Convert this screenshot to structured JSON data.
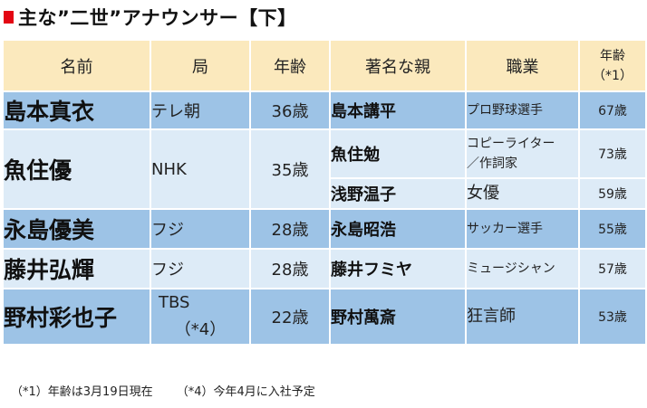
{
  "title": {
    "text": "主な”二世”アナウンサー【下】"
  },
  "headers": {
    "name": "名前",
    "station": "局",
    "age": "年齢",
    "parent": "著名な親",
    "job": "職業",
    "parent_age_top": "年齢",
    "parent_age_note": "（*1）"
  },
  "rows": [
    {
      "name": "島本真衣",
      "station": "テレ朝",
      "age": "36歳",
      "parents": [
        {
          "name": "島本講平",
          "job": "プロ野球選手",
          "age": "67歳"
        }
      ]
    },
    {
      "name": "魚住優",
      "station": "NHK",
      "age": "35歳",
      "parents": [
        {
          "name": "魚住勉",
          "job_line1": "コピーライター",
          "job_line2": "／作詞家",
          "age": "73歳"
        },
        {
          "name": "浅野温子",
          "job": "女優",
          "age": "59歳"
        }
      ]
    },
    {
      "name": "永島優美",
      "station": "フジ",
      "age": "28歳",
      "parents": [
        {
          "name": "永島昭浩",
          "job": "サッカー選手",
          "age": "55歳"
        }
      ]
    },
    {
      "name": "藤井弘輝",
      "station": "フジ",
      "age": "28歳",
      "parents": [
        {
          "name": "藤井フミヤ",
          "job": "ミュージシャン",
          "age": "57歳"
        }
      ]
    },
    {
      "name": "野村彩也子",
      "station_line1": "TBS",
      "station_line2": "（*4）",
      "age": "22歳",
      "parents": [
        {
          "name": "野村萬斎",
          "job": "狂言師",
          "age": "53歳"
        }
      ]
    }
  ],
  "footnotes": [
    "（*1）年齢は3月19日現在",
    "（*4）今年4月に入社予定"
  ],
  "colors": {
    "header_bg": "#fbe9bd",
    "row_dark": "#9dc3e6",
    "row_light": "#ddebf7",
    "accent_red": "#e30613"
  }
}
